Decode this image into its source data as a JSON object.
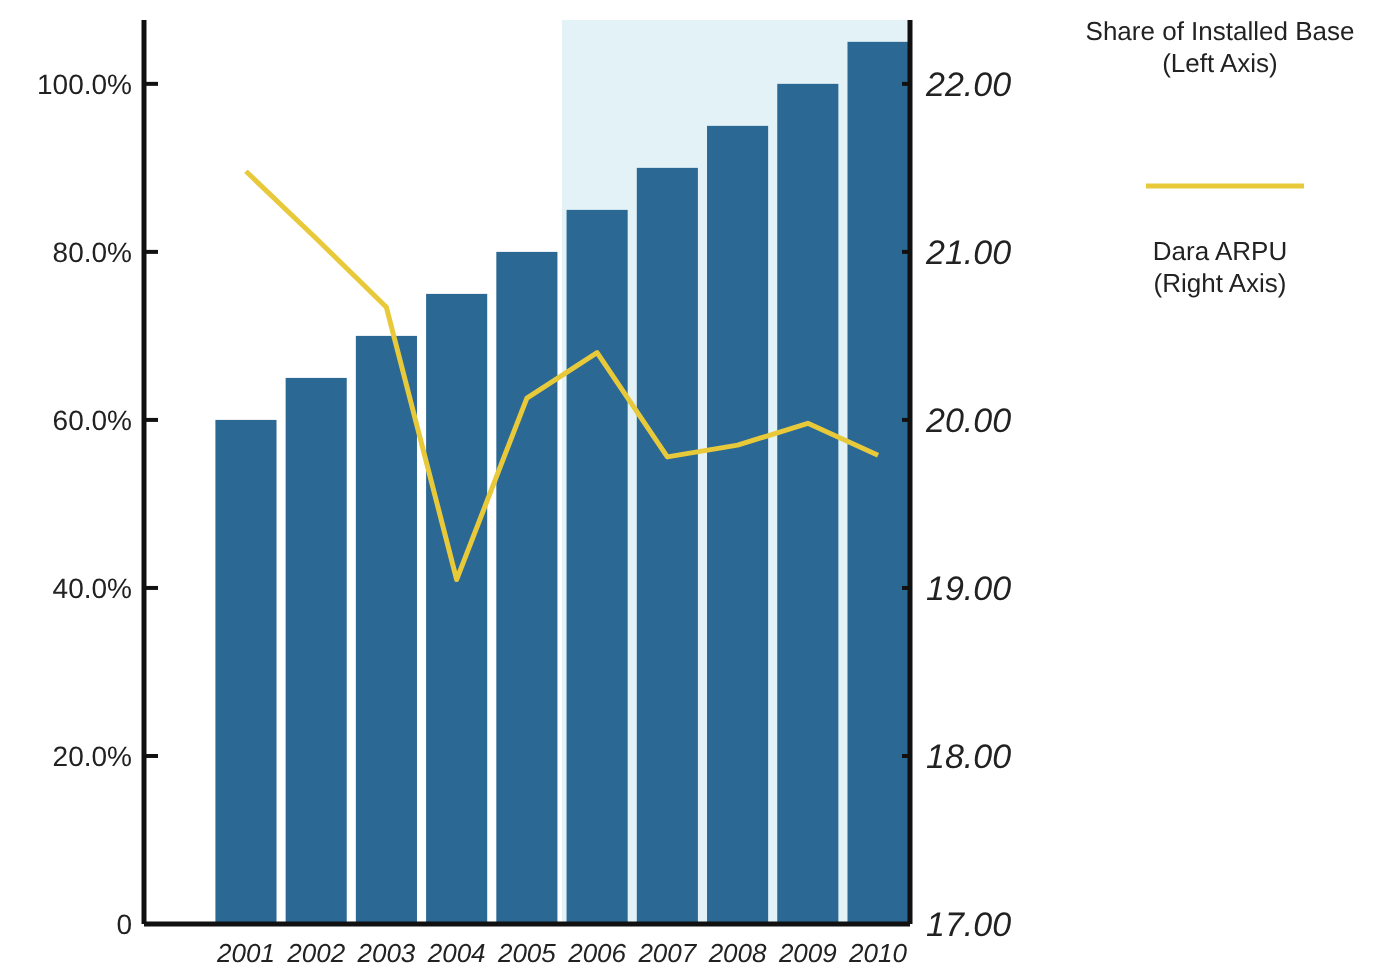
{
  "chart_data": {
    "type": "bar",
    "categories": [
      "2001",
      "2002",
      "2003",
      "2004",
      "2005",
      "2006",
      "2007",
      "2008",
      "2009",
      "2010"
    ],
    "series": [
      {
        "name": "Share of Installed Base\n(Left Axis)",
        "color": "#2b6893",
        "values": [
          60,
          65,
          70,
          75,
          80,
          85,
          90,
          95,
          100,
          105
        ]
      },
      {
        "name": "Dara ARPU\n(Right Axis)",
        "type": "line",
        "axis": "y2",
        "color": "#e8c93a",
        "values": [
          21.48,
          21.08,
          20.67,
          19.05,
          20.13,
          20.4,
          19.78,
          19.85,
          19.98,
          19.79
        ]
      }
    ],
    "ylim": [
      0,
      107.6
    ],
    "yticks": [
      0,
      {
        "value": 20,
        "label": "20.0%"
      },
      {
        "value": 40,
        "label": "40.0%"
      },
      {
        "value": 60,
        "label": "60.0%"
      },
      {
        "value": 80,
        "label": "80.0%"
      },
      {
        "value": 100,
        "label": "100.0%"
      }
    ],
    "y2lim": [
      17,
      22.38
    ],
    "y2ticks": [
      {
        "value": 17,
        "label": "17.00"
      },
      {
        "value": 18,
        "label": "18.00"
      },
      {
        "value": 19,
        "label": "19.00"
      },
      {
        "value": 20,
        "label": "20.00"
      },
      {
        "value": 21,
        "label": "21.00"
      },
      {
        "value": 22,
        "label": "22.00"
      }
    ],
    "bands": [
      {
        "axis": "x",
        "from": "2006",
        "to": "2010",
        "color": "#e2f2f7"
      }
    ],
    "legend": "right",
    "grid": false
  }
}
